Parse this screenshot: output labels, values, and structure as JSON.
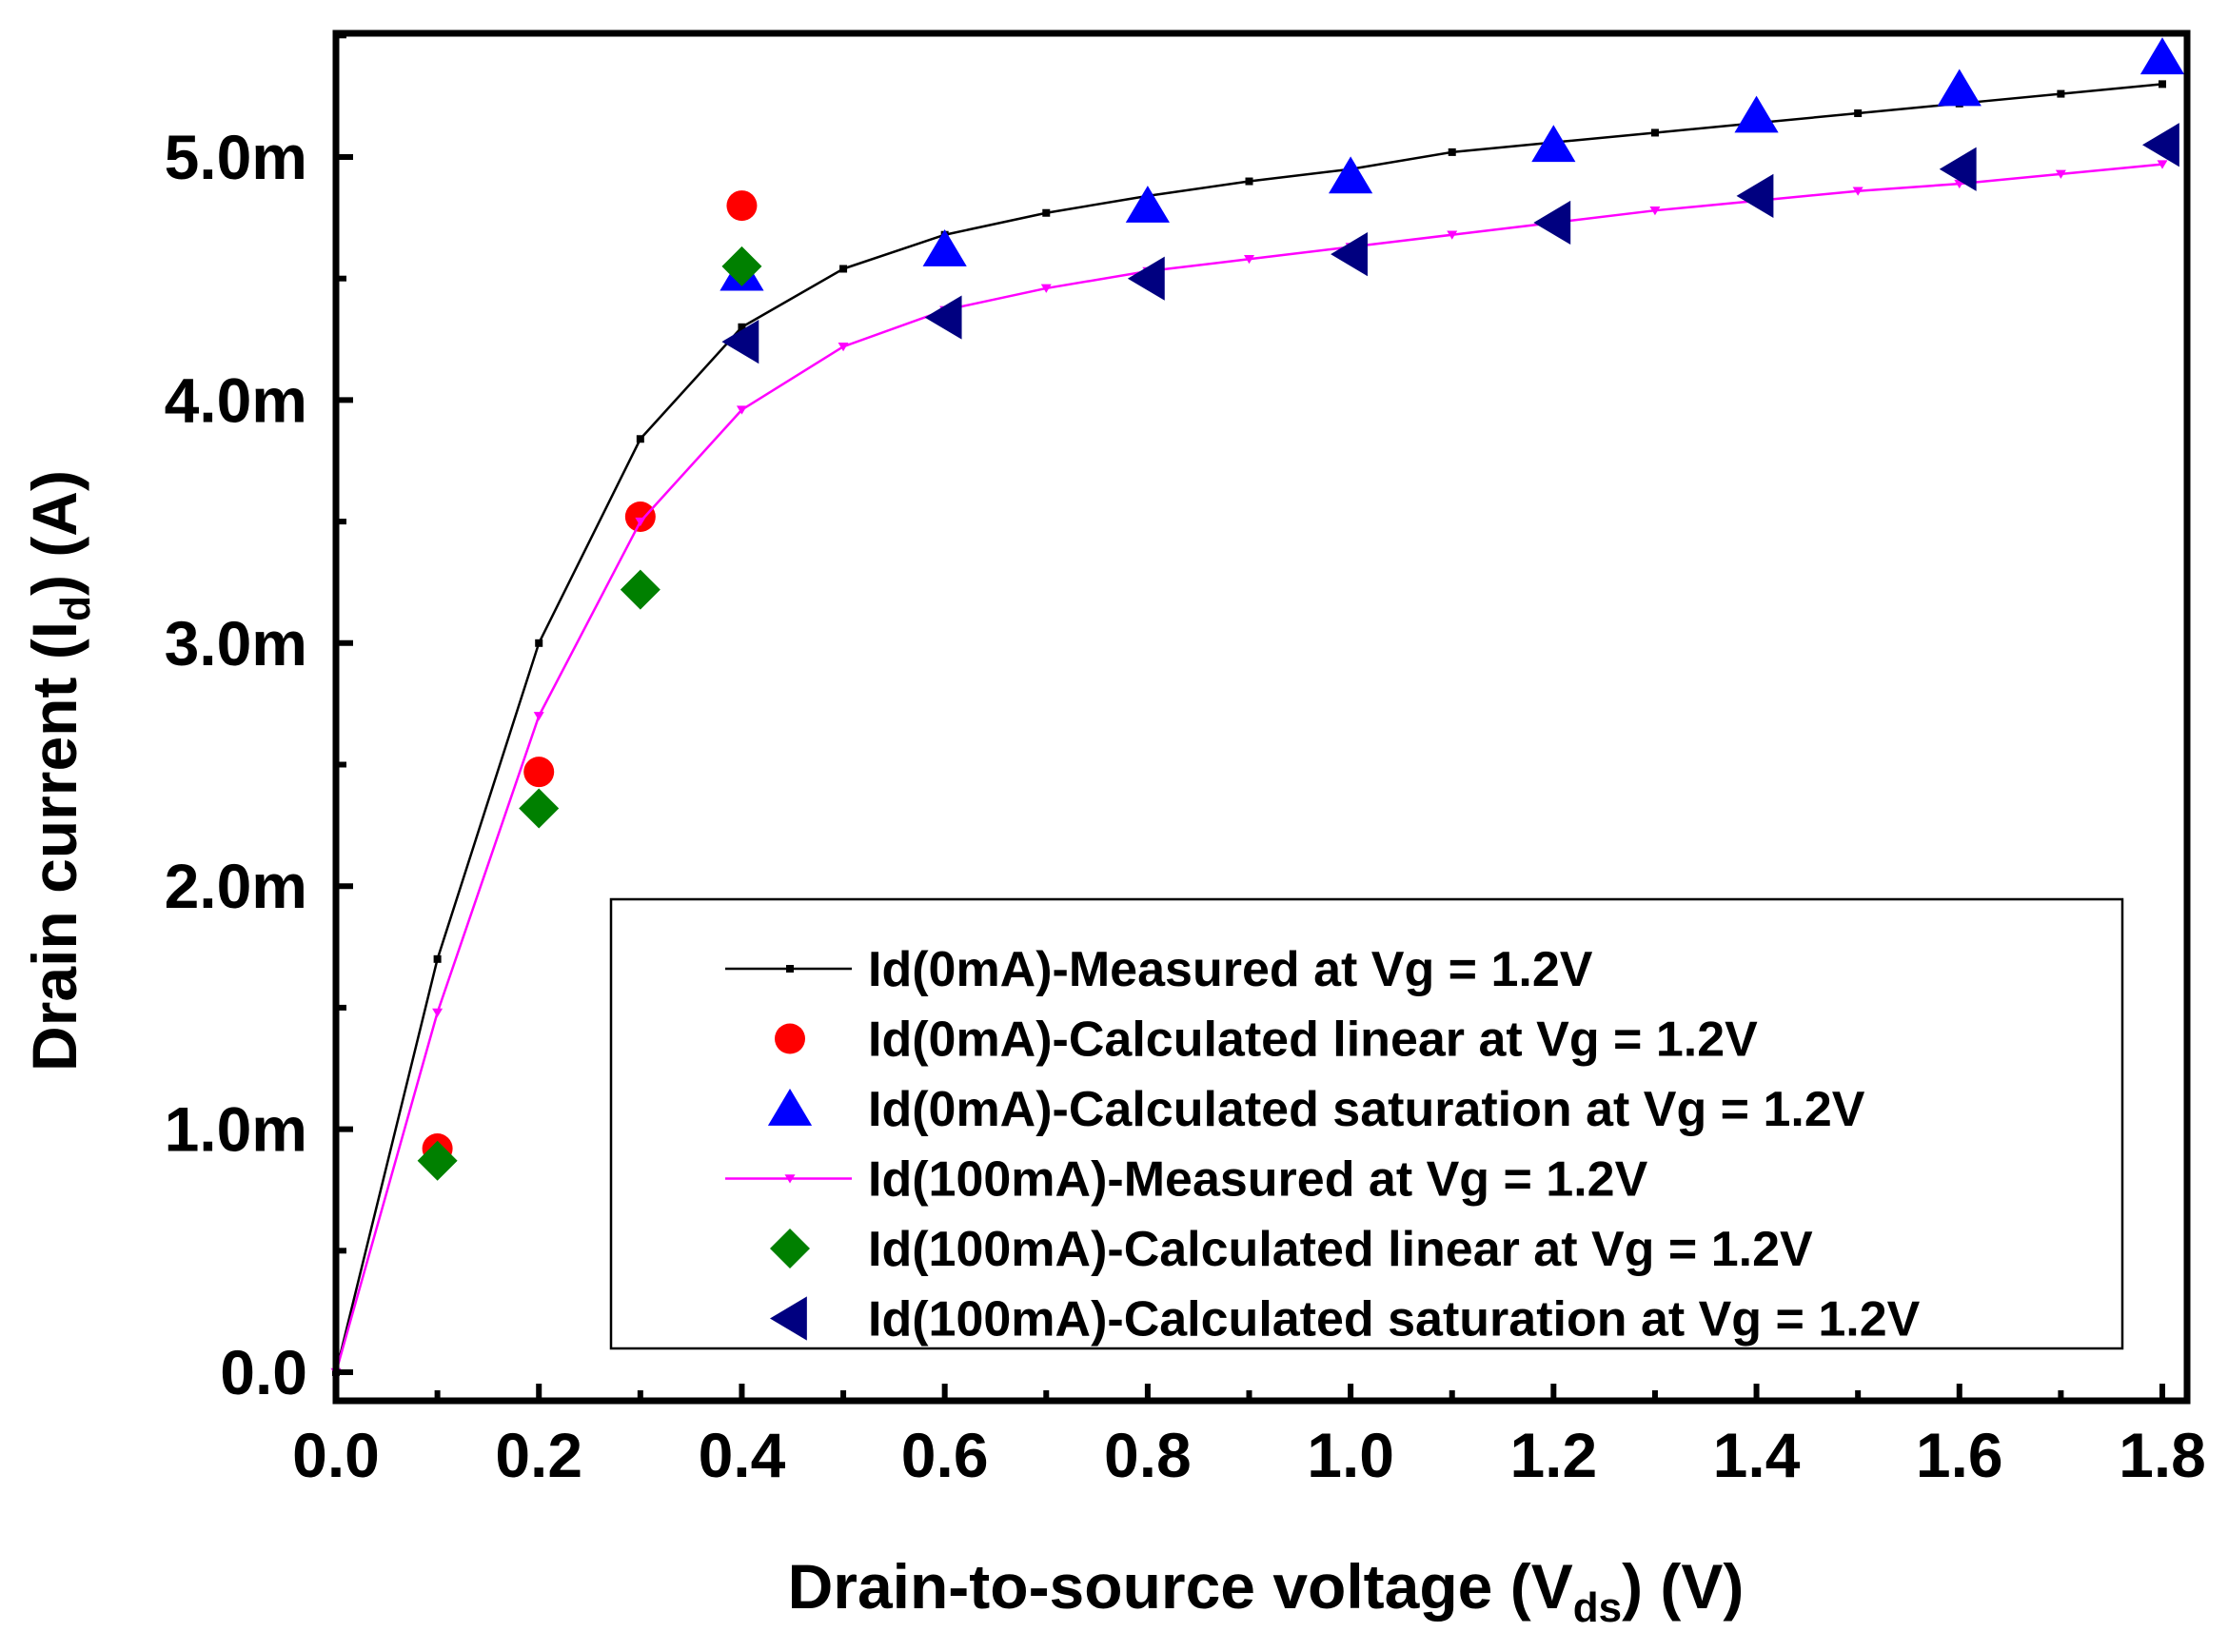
{
  "chart_data": {
    "type": "scatter",
    "xlabel": {
      "main": "Drain-to-source voltage (V",
      "sub": "ds",
      "tail": ") (V)"
    },
    "ylabel": {
      "main": "Drain current (I",
      "sub": "d",
      "tail": ") (A)"
    },
    "xlim": [
      0,
      1.8
    ],
    "ylim": [
      -0.1,
      5.5
    ],
    "x_ticks": [
      0.0,
      0.2,
      0.4,
      0.6,
      0.8,
      1.0,
      1.2,
      1.4,
      1.6,
      1.8
    ],
    "x_tick_labels": [
      "0.0",
      "0.2",
      "0.4",
      "0.6",
      "0.8",
      "1.0",
      "1.2",
      "1.4",
      "1.6",
      "1.8"
    ],
    "y_ticks": [
      0,
      1,
      2,
      3,
      4,
      5
    ],
    "y_tick_labels": [
      "0.0",
      "1.0m",
      "2.0m",
      "3.0m",
      "4.0m",
      "5.0m"
    ],
    "y_unit": "mA",
    "legend_position": "bottom-right",
    "series": [
      {
        "name": "Id(0mA)-Measured at Vg = 1.2V",
        "kind": "line",
        "marker": "square",
        "color": "#000000",
        "x": [
          0.0,
          0.1,
          0.2,
          0.3,
          0.4,
          0.5,
          0.6,
          0.7,
          0.8,
          0.9,
          1.0,
          1.1,
          1.2,
          1.3,
          1.4,
          1.5,
          1.6,
          1.7,
          1.8
        ],
        "y": [
          0.0,
          1.7,
          3.0,
          3.84,
          4.3,
          4.54,
          4.68,
          4.77,
          4.84,
          4.9,
          4.95,
          5.02,
          5.06,
          5.1,
          5.14,
          5.18,
          5.22,
          5.26,
          5.3
        ]
      },
      {
        "name": "Id(0mA)-Calculated linear at Vg = 1.2V",
        "kind": "scatter",
        "marker": "circle",
        "color": "#ff0000",
        "x": [
          0.1,
          0.2,
          0.3,
          0.4
        ],
        "y": [
          0.92,
          2.47,
          3.52,
          4.8
        ]
      },
      {
        "name": "Id(0mA)-Calculated saturation at Vg = 1.2V",
        "kind": "scatter",
        "marker": "triangle-up",
        "color": "#0000ff",
        "x": [
          0.4,
          0.6,
          0.8,
          1.0,
          1.2,
          1.4,
          1.6,
          1.8
        ],
        "y": [
          4.52,
          4.62,
          4.8,
          4.92,
          5.05,
          5.17,
          5.28,
          5.41
        ]
      },
      {
        "name": "Id(100mA)-Measured at Vg = 1.2V",
        "kind": "line",
        "marker": "triangle-down",
        "color": "#ff00ff",
        "x": [
          0.0,
          0.1,
          0.2,
          0.3,
          0.4,
          0.5,
          0.6,
          0.7,
          0.8,
          0.9,
          1.0,
          1.1,
          1.2,
          1.3,
          1.4,
          1.5,
          1.6,
          1.7,
          1.8
        ],
        "y": [
          0.0,
          1.48,
          2.7,
          3.5,
          3.96,
          4.22,
          4.37,
          4.46,
          4.53,
          4.58,
          4.63,
          4.68,
          4.73,
          4.78,
          4.82,
          4.86,
          4.89,
          4.93,
          4.97
        ]
      },
      {
        "name": "Id(100mA)-Calculated linear at Vg = 1.2V",
        "kind": "scatter",
        "marker": "diamond",
        "color": "#008000",
        "x": [
          0.1,
          0.2,
          0.3,
          0.4
        ],
        "y": [
          0.87,
          2.32,
          3.22,
          4.55
        ]
      },
      {
        "name": "Id(100mA)-Calculated saturation at Vg = 1.2V",
        "kind": "scatter",
        "marker": "triangle-left",
        "color": "#000080",
        "x": [
          0.4,
          0.6,
          0.8,
          1.0,
          1.2,
          1.4,
          1.6,
          1.8
        ],
        "y": [
          4.24,
          4.34,
          4.5,
          4.6,
          4.73,
          4.84,
          4.95,
          5.05
        ]
      }
    ]
  }
}
